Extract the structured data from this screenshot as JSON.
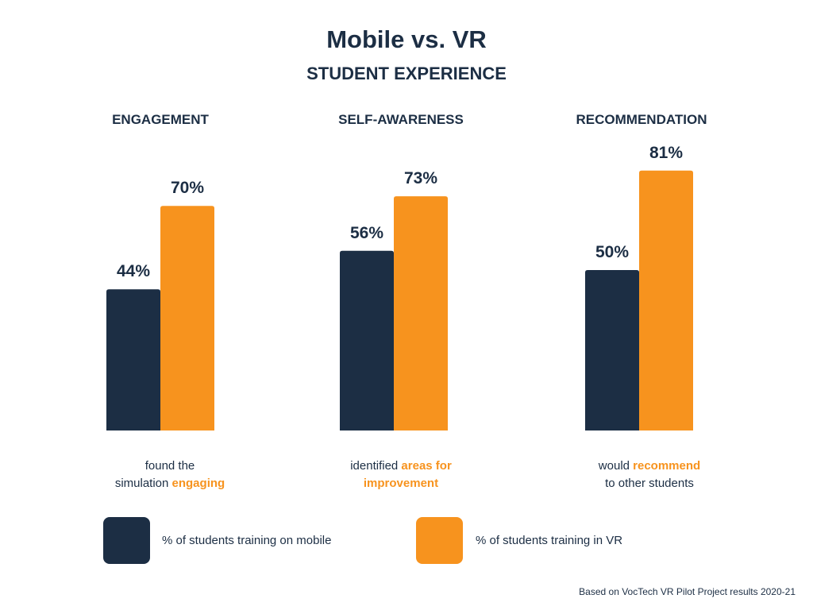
{
  "colors": {
    "mobile": "#1c2e44",
    "vr": "#f7931e",
    "text": "#1c2e44"
  },
  "chart_data": {
    "type": "bar",
    "title": "Mobile vs. VR",
    "subtitle": "STUDENT EXPERIENCE",
    "categories": [
      "ENGAGEMENT",
      "SELF-AWARENESS",
      "RECOMMENDATION"
    ],
    "series": [
      {
        "name": "% of students training on mobile",
        "values": [
          44,
          56,
          50
        ],
        "labels": [
          "44%",
          "56%",
          "50%"
        ]
      },
      {
        "name": "% of students training in VR",
        "values": [
          70,
          73,
          81
        ],
        "labels": [
          "70%",
          "73%",
          "81%"
        ]
      }
    ],
    "ylim": [
      0,
      100
    ],
    "xlabel": "",
    "ylabel": ""
  },
  "descriptions": [
    {
      "line1": "found the",
      "line2_pre": "simulation ",
      "line2_hl": "engaging"
    },
    {
      "line1_pre": "identified ",
      "line1_hl": "areas for",
      "line2_hl": "improvement"
    },
    {
      "line1_pre": "would ",
      "line1_hl": "recommend",
      "line2": "to other students"
    }
  ],
  "legend": {
    "mobile_label": "% of students training on mobile",
    "vr_label": "% of students training in VR"
  },
  "source": "Based on VocTech VR Pilot Project results 2020-21"
}
